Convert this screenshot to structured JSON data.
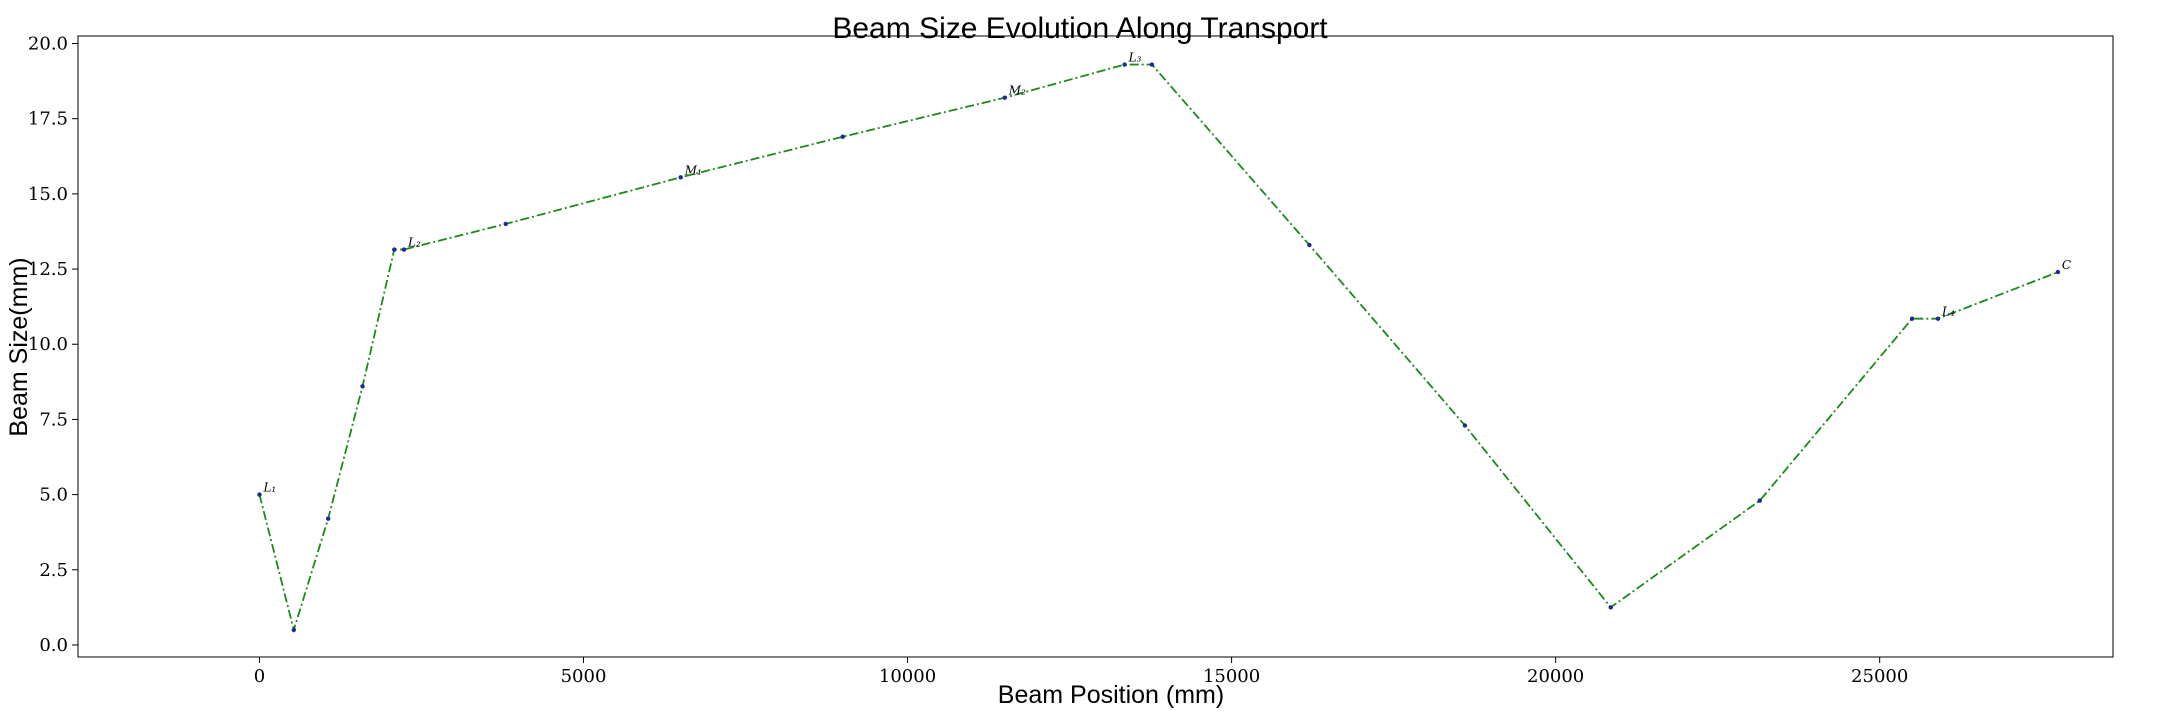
{
  "chart_data": {
    "type": "line",
    "title": "Beam Size Evolution Along Transport",
    "xlabel": "Beam Position (mm)",
    "ylabel": "Beam Size(mm)",
    "xlim": [
      -2800,
      28600
    ],
    "ylim": [
      -0.4,
      20.25
    ],
    "xticks": [
      0,
      5000,
      10000,
      15000,
      20000,
      25000
    ],
    "yticks": [
      0.0,
      2.5,
      5.0,
      7.5,
      10.0,
      12.5,
      15.0,
      17.5,
      20.0
    ],
    "xtick_labels": [
      "0",
      "5000",
      "10000",
      "15000",
      "20000",
      "25000"
    ],
    "ytick_labels": [
      "0.0",
      "2.5",
      "5.0",
      "7.5",
      "10.0",
      "12.5",
      "15.0",
      "17.5",
      "20.0"
    ],
    "grid": false,
    "line_color": "#1a8a1a",
    "marker_color": "#1a2a9a",
    "series": [
      {
        "x": [
          0,
          530,
          1060,
          1590,
          2080,
          2230,
          3800,
          6500,
          9000,
          11500,
          13350,
          13770,
          16200,
          18600,
          20850,
          23150,
          25500,
          25900,
          27750
        ],
        "y": [
          5.0,
          0.5,
          4.2,
          8.6,
          13.15,
          13.15,
          14.0,
          15.55,
          16.9,
          18.2,
          19.3,
          19.3,
          13.3,
          7.3,
          1.25,
          4.8,
          10.85,
          10.85,
          12.4
        ]
      }
    ],
    "annotations": [
      {
        "text": "L₁",
        "x": 0,
        "y": 5.0
      },
      {
        "text": "L₂",
        "x": 2230,
        "y": 13.15
      },
      {
        "text": "M₁",
        "x": 6500,
        "y": 15.55
      },
      {
        "text": "M₂",
        "x": 11500,
        "y": 18.2
      },
      {
        "text": "L₃",
        "x": 13350,
        "y": 19.3
      },
      {
        "text": "L₄",
        "x": 25900,
        "y": 10.85
      },
      {
        "text": "C",
        "x": 27750,
        "y": 12.4
      }
    ]
  }
}
